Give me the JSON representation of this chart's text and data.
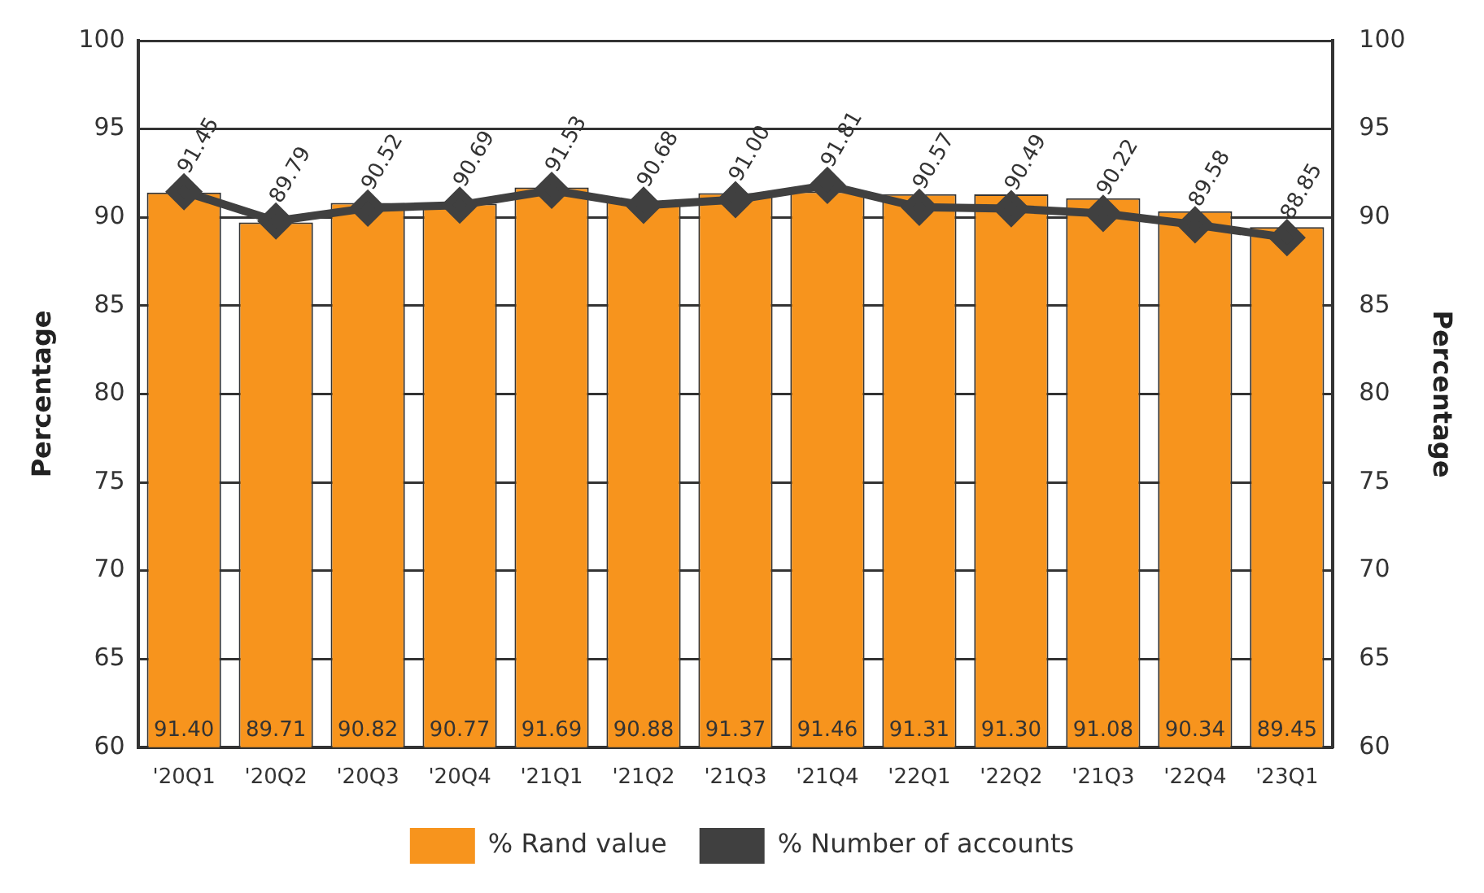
{
  "chart_data": {
    "type": "bar",
    "categories": [
      "'20Q1",
      "'20Q2",
      "'20Q3",
      "'20Q4",
      "'21Q1",
      "'21Q2",
      "'21Q3",
      "'21Q4",
      "'22Q1",
      "'22Q2",
      "'21Q3",
      "'22Q4",
      "'23Q1"
    ],
    "series": [
      {
        "name": "% Rand value",
        "color": "#f7941d",
        "values": [
          91.4,
          89.71,
          90.82,
          90.77,
          91.69,
          90.88,
          91.37,
          91.46,
          91.31,
          91.3,
          91.08,
          90.34,
          89.45
        ],
        "value_labels": [
          "91.40",
          "89.71",
          "90.82",
          "90.77",
          "91.69",
          "90.88",
          "91.37",
          "91.46",
          "91.31",
          "91.30",
          "91.08",
          "90.34",
          "89.45"
        ]
      },
      {
        "name": "% Number of accounts",
        "type": "line",
        "color": "#404040",
        "values": [
          91.45,
          89.79,
          90.52,
          90.69,
          91.53,
          90.68,
          91.0,
          91.81,
          90.57,
          90.49,
          90.22,
          89.58,
          88.85
        ],
        "value_labels": [
          "91.45",
          "89.79",
          "90.52",
          "90.69",
          "91.53",
          "90.68",
          "91.00",
          "91.81",
          "90.57",
          "90.49",
          "90.22",
          "89.58",
          "88.85"
        ]
      }
    ],
    "ylabel": "Percentage",
    "y2label": "Percentage",
    "ylim": [
      60,
      100
    ],
    "yticks": [
      60,
      65,
      70,
      75,
      80,
      85,
      90,
      95,
      100
    ],
    "y2lim": [
      60,
      100
    ],
    "y2ticks": [
      60,
      65,
      70,
      75,
      80,
      85,
      90,
      95,
      100
    ],
    "grid": "y",
    "legend": "bottom",
    "marker": "diamond",
    "line_style": "solid"
  }
}
